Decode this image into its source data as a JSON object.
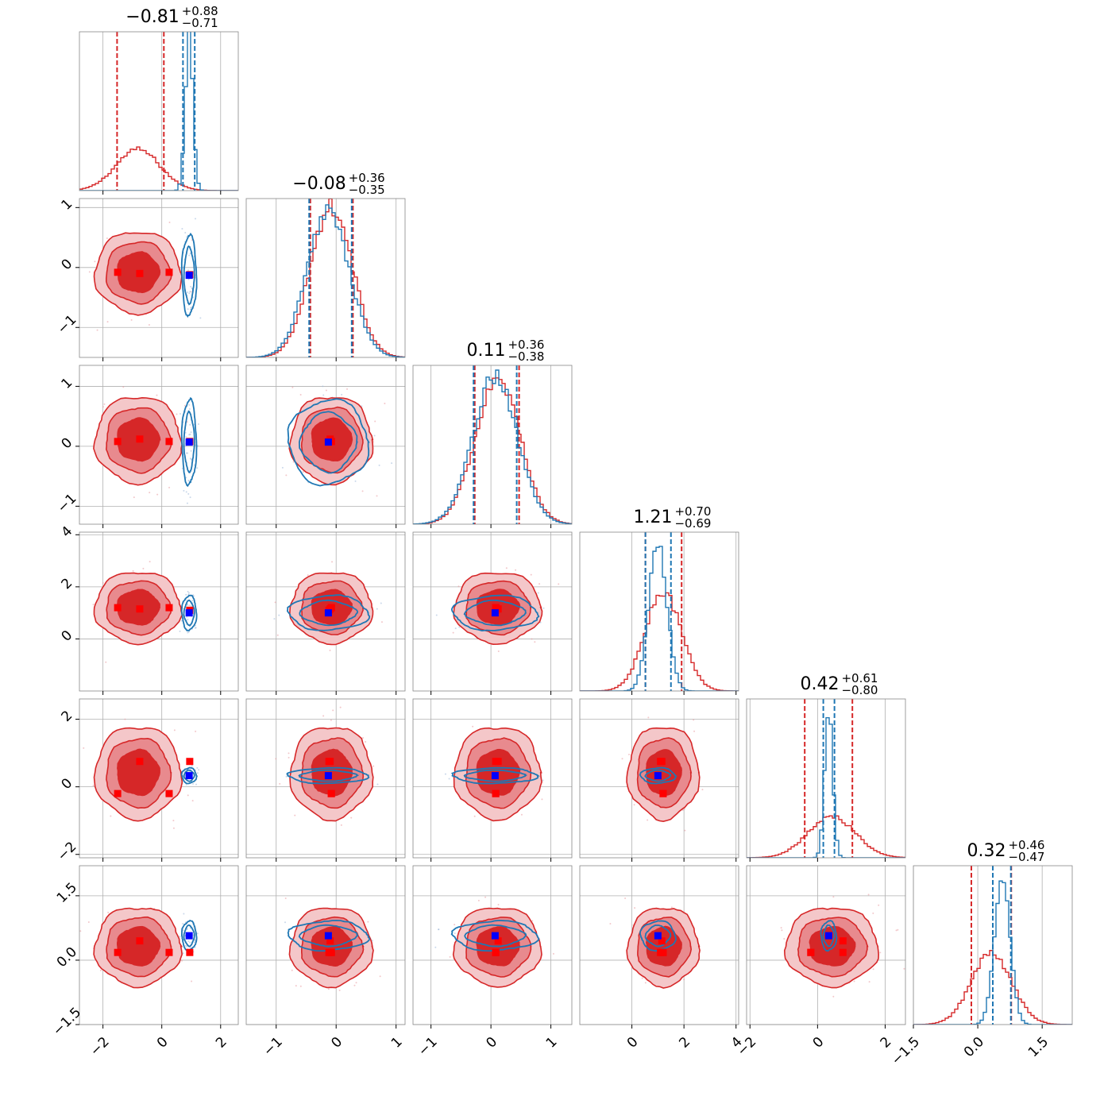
{
  "chart_data": {
    "type": "corner",
    "dimensions": 6,
    "series": [
      {
        "name": "",
        "color": "#d62728",
        "role": "filled-contours-and-histograms"
      },
      {
        "name": "",
        "color": "#1f77b4",
        "role": "line-contours-and-histograms"
      }
    ],
    "marker_colors": {
      "reference": "#ff0000",
      "truth": "#0000ff"
    },
    "titles": [
      {
        "median": "0.81",
        "sign": "−",
        "plus": "+0.88",
        "minus": "−0.71"
      },
      {
        "median": "0.08",
        "sign": "−",
        "plus": "+0.36",
        "minus": "−0.35"
      },
      {
        "median": "0.11",
        "sign": "",
        "plus": "+0.36",
        "minus": "−0.38"
      },
      {
        "median": "1.21",
        "sign": "",
        "plus": "+0.70",
        "minus": "−0.69"
      },
      {
        "median": "0.42",
        "sign": "",
        "plus": "+0.61",
        "minus": "−0.80"
      },
      {
        "median": "0.32",
        "sign": "",
        "plus": "+0.46",
        "minus": "−0.47"
      }
    ],
    "ranges": [
      [
        -2.8,
        2.6
      ],
      [
        -1.5,
        1.15
      ],
      [
        -1.3,
        1.35
      ],
      [
        -2.0,
        4.1
      ],
      [
        -2.1,
        2.6
      ],
      [
        -1.5,
        2.2
      ]
    ],
    "x_ticks": [
      {
        "values": [
          -2,
          0,
          2
        ],
        "labels": [
          "−2",
          "0",
          "2"
        ]
      },
      {
        "values": [
          -1,
          0,
          1
        ],
        "labels": [
          "−1",
          "0",
          "1"
        ]
      },
      {
        "values": [
          -1,
          0,
          1
        ],
        "labels": [
          "−1",
          "0",
          "1"
        ]
      },
      {
        "values": [
          0,
          2,
          4
        ],
        "labels": [
          "0",
          "2",
          "4"
        ]
      },
      {
        "values": [
          -2,
          0,
          2
        ],
        "labels": [
          "−2",
          "0",
          "2"
        ]
      },
      {
        "values": [
          -1.5,
          0.0,
          1.5
        ],
        "labels": [
          "−1.5",
          "0.0",
          "1.5"
        ]
      }
    ],
    "y_ticks": [
      null,
      {
        "values": [
          -1,
          0,
          1
        ],
        "labels": [
          "−1",
          "0",
          "1"
        ]
      },
      {
        "values": [
          -1,
          0,
          1
        ],
        "labels": [
          "−1",
          "0",
          "1"
        ]
      },
      {
        "values": [
          0,
          2,
          4
        ],
        "labels": [
          "0",
          "2",
          "4"
        ]
      },
      {
        "values": [
          -2,
          0,
          2
        ],
        "labels": [
          "−2",
          "0",
          "2"
        ]
      },
      {
        "values": [
          -1.5,
          0.0,
          1.5
        ],
        "labels": [
          "−1.5",
          "0.0",
          "1.5"
        ]
      }
    ],
    "red_posterior": {
      "median": [
        -0.81,
        -0.08,
        0.11,
        1.21,
        0.42,
        0.32
      ],
      "quantiles": [
        [
          -1.52,
          0.07
        ],
        [
          -0.43,
          0.28
        ],
        [
          -0.27,
          0.47
        ],
        [
          0.52,
          1.91
        ],
        [
          -0.38,
          1.03
        ],
        [
          -0.15,
          0.78
        ]
      ],
      "std": [
        0.75,
        0.35,
        0.37,
        0.7,
        0.7,
        0.47
      ],
      "hist_peak": [
        0.26,
        0.95,
        0.93,
        0.62,
        0.26,
        0.45
      ],
      "mode_components": [
        [
          -1.5,
          -0.08,
          0.08,
          1.2,
          -0.2,
          0.18
        ],
        [
          -0.75,
          -0.1,
          0.12,
          1.15,
          0.75,
          0.45
        ],
        [
          0.25,
          -0.08,
          0.08,
          1.2,
          -0.2,
          0.18
        ],
        [
          0.95,
          -0.12,
          0.08,
          1.1,
          0.75,
          0.18
        ]
      ]
    },
    "blue_posterior": {
      "median": [
        0.93,
        -0.13,
        0.07,
        1.0,
        0.33,
        0.57
      ],
      "quantiles": [
        [
          0.72,
          1.12
        ],
        [
          -0.45,
          0.26
        ],
        [
          -0.29,
          0.43
        ],
        [
          0.52,
          1.5
        ],
        [
          0.17,
          0.5
        ],
        [
          0.35,
          0.77
        ]
      ],
      "std": [
        0.13,
        0.35,
        0.37,
        0.35,
        0.12,
        0.18
      ],
      "hist_peak": [
        0.97,
        0.92,
        0.93,
        0.92,
        0.92,
        0.97
      ]
    },
    "truth_marker": [
      0.93,
      -0.13,
      0.07,
      1.0,
      0.33,
      0.57
    ]
  }
}
